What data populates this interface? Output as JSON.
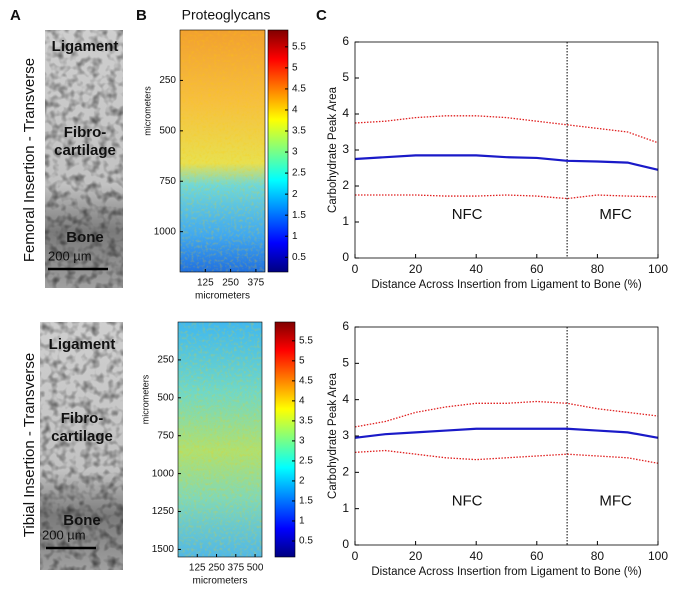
{
  "panel_labels": [
    "A",
    "B",
    "C"
  ],
  "panel_b_title": "Proteoglycans",
  "rows": [
    {
      "label": "Femoral Insertion - Transverse",
      "tissue_labels": [
        "Ligament",
        "Fibro-",
        "cartilage",
        "Bone"
      ],
      "scale_bar": "200 µm"
    },
    {
      "label": "Tibial Insertion - Transverse",
      "tissue_labels": [
        "Ligament",
        "Fibro-",
        "cartilage",
        "Bone"
      ],
      "scale_bar": "200 µm"
    }
  ],
  "chart_data": [
    {
      "type": "heatmap",
      "xlabel": "micrometers",
      "ylabel": "micrometers",
      "xlim": [
        0,
        420
      ],
      "xticks": [
        125,
        250,
        375
      ],
      "ylim": [
        0,
        1200
      ],
      "yticks": [
        250,
        500,
        750,
        1000
      ],
      "colorbar_lim": [
        0.15,
        5.9
      ],
      "colorbar_ticks": [
        0.5,
        1,
        1.5,
        2,
        2.5,
        3,
        3.5,
        4,
        4.5,
        5,
        5.5
      ]
    },
    {
      "type": "line",
      "xlabel": "Distance Across Insertion from Ligament to Bone (%)",
      "ylabel": "Carbohydrate Peak Area",
      "x": [
        0,
        10,
        20,
        30,
        40,
        50,
        60,
        70,
        80,
        90,
        100
      ],
      "xlim": [
        0,
        100
      ],
      "xticks": [
        0,
        20,
        40,
        60,
        80,
        100
      ],
      "ylim": [
        0,
        6
      ],
      "yticks": [
        0,
        1,
        2,
        3,
        4,
        5,
        6
      ],
      "series": [
        {
          "color": "#1a1ac8",
          "style": "solid",
          "values": [
            2.75,
            2.8,
            2.85,
            2.85,
            2.85,
            2.8,
            2.78,
            2.7,
            2.68,
            2.65,
            2.45
          ]
        },
        {
          "color": "#e02020",
          "style": "dotted",
          "values": [
            3.75,
            3.8,
            3.9,
            3.95,
            3.95,
            3.9,
            3.8,
            3.7,
            3.6,
            3.5,
            3.2
          ]
        },
        {
          "color": "#e02020",
          "style": "dotted",
          "values": [
            1.75,
            1.75,
            1.75,
            1.72,
            1.72,
            1.75,
            1.72,
            1.65,
            1.75,
            1.72,
            1.7
          ]
        }
      ],
      "divider_x": 70,
      "annotations": [
        "NFC",
        "MFC"
      ]
    },
    {
      "type": "heatmap",
      "xlabel": "micrometers",
      "ylabel": "micrometers",
      "xlim": [
        0,
        545
      ],
      "xticks": [
        125,
        250,
        375,
        500
      ],
      "ylim": [
        0,
        1550
      ],
      "yticks": [
        250,
        500,
        750,
        1000,
        1250,
        1500
      ],
      "colorbar_lim": [
        0.1,
        5.97
      ],
      "colorbar_ticks": [
        0.5,
        1,
        1.5,
        2,
        2.5,
        3,
        3.5,
        4,
        4.5,
        5,
        5.5
      ]
    },
    {
      "type": "line",
      "xlabel": "Distance Across Insertion from Ligament to Bone (%)",
      "ylabel": "Carbohydrate Peak Area",
      "x": [
        0,
        10,
        20,
        30,
        40,
        50,
        60,
        70,
        80,
        90,
        100
      ],
      "xlim": [
        0,
        100
      ],
      "xticks": [
        0,
        20,
        40,
        60,
        80,
        100
      ],
      "ylim": [
        0,
        6
      ],
      "yticks": [
        0,
        1,
        2,
        3,
        4,
        5,
        6
      ],
      "series": [
        {
          "color": "#1a1ac8",
          "style": "solid",
          "values": [
            2.95,
            3.05,
            3.1,
            3.15,
            3.2,
            3.2,
            3.2,
            3.2,
            3.15,
            3.1,
            2.95
          ]
        },
        {
          "color": "#e02020",
          "style": "dotted",
          "values": [
            3.25,
            3.4,
            3.65,
            3.8,
            3.9,
            3.9,
            3.95,
            3.9,
            3.75,
            3.65,
            3.55
          ]
        },
        {
          "color": "#e02020",
          "style": "dotted",
          "values": [
            2.55,
            2.6,
            2.5,
            2.4,
            2.35,
            2.4,
            2.45,
            2.5,
            2.45,
            2.4,
            2.25
          ]
        }
      ],
      "divider_x": 70,
      "annotations": [
        "NFC",
        "MFC"
      ]
    }
  ]
}
